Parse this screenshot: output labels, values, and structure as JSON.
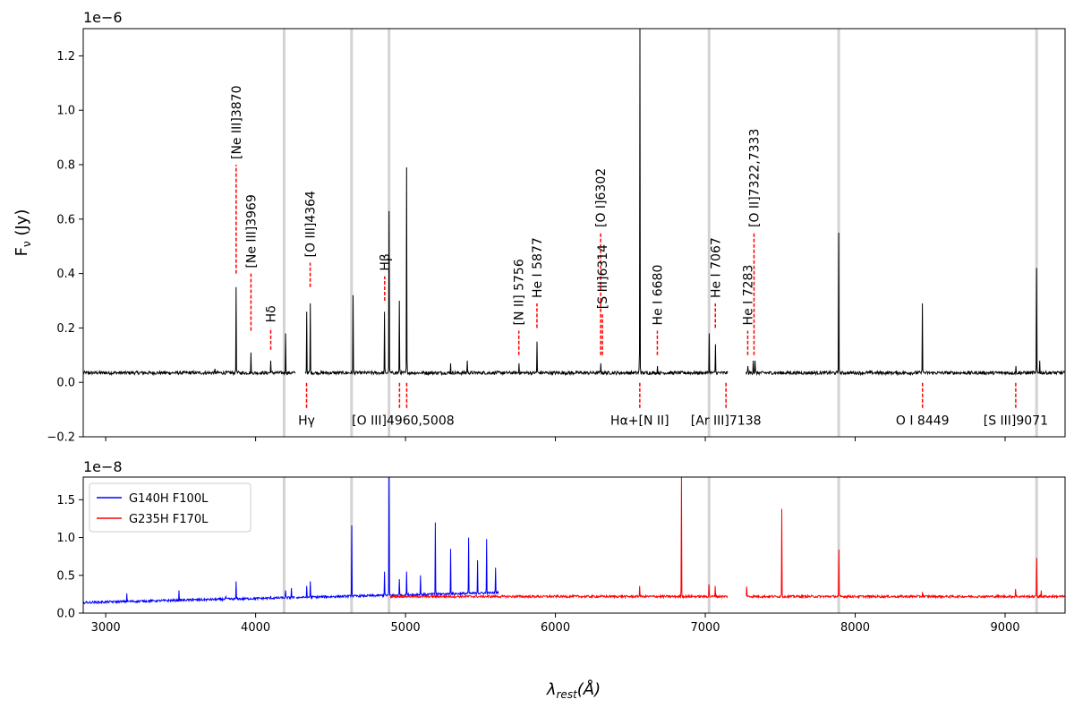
{
  "chart_data": [
    {
      "type": "line",
      "name": "top-panel",
      "ylabel_main": "F",
      "ylabel_sub": "ν",
      "ylabel_unit": " (Jy)",
      "y_offset_label": "1e−6",
      "xlim": [
        2850,
        9400
      ],
      "ylim": [
        -0.2,
        1.3
      ],
      "yticks": [
        -0.2,
        0.0,
        0.2,
        0.4,
        0.6,
        0.8,
        1.0,
        1.2
      ],
      "ytick_labels": [
        "−0.2",
        "0.0",
        "0.2",
        "0.4",
        "0.6",
        "0.8",
        "1.0",
        "1.2"
      ],
      "grey_vlines": [
        4190,
        4640,
        4890,
        7025,
        7890,
        9210
      ],
      "series": [
        {
          "color": "#000000",
          "continuum": 0.035,
          "gaps": [
            [
              4265,
              4330
            ],
            [
              7150,
              7270
            ]
          ],
          "peaks": [
            [
              3730,
              0.05
            ],
            [
              3870,
              0.35
            ],
            [
              3969,
              0.11
            ],
            [
              4101,
              0.08
            ],
            [
              4200,
              0.18
            ],
            [
              4340,
              0.26
            ],
            [
              4364,
              0.29
            ],
            [
              4650,
              0.32
            ],
            [
              4861,
              0.26
            ],
            [
              4890,
              0.63
            ],
            [
              4960,
              0.3
            ],
            [
              5008,
              0.79
            ],
            [
              5300,
              0.07
            ],
            [
              5411,
              0.08
            ],
            [
              5756,
              0.07
            ],
            [
              5877,
              0.15
            ],
            [
              6302,
              0.07
            ],
            [
              6563,
              1.3
            ],
            [
              6680,
              0.06
            ],
            [
              7025,
              0.18
            ],
            [
              7067,
              0.14
            ],
            [
              7283,
              0.06
            ],
            [
              7320,
              0.08
            ],
            [
              7333,
              0.08
            ],
            [
              7890,
              0.55
            ],
            [
              8449,
              0.29
            ],
            [
              9071,
              0.06
            ],
            [
              9210,
              0.42
            ],
            [
              9230,
              0.08
            ]
          ]
        }
      ],
      "annotations_above": [
        {
          "x": 3870,
          "text": "[Ne III]3870",
          "y0": 0.4,
          "y1": 0.8
        },
        {
          "x": 3969,
          "text": "[Ne III]3969",
          "y0": 0.19,
          "y1": 0.4
        },
        {
          "x": 4101,
          "text": "Hδ",
          "y0": 0.12,
          "y1": 0.2
        },
        {
          "x": 4364,
          "text": "[O III]4364",
          "y0": 0.35,
          "y1": 0.44
        },
        {
          "x": 4861,
          "text": "Hβ",
          "y0": 0.3,
          "y1": 0.39
        },
        {
          "x": 5756,
          "text": "[N II] 5756",
          "y0": 0.1,
          "y1": 0.19
        },
        {
          "x": 5877,
          "text": "He I 5877",
          "y0": 0.2,
          "y1": 0.29
        },
        {
          "x": 6302,
          "text": "[O I]6302",
          "y0": 0.1,
          "y1": 0.55
        },
        {
          "x": 6314,
          "text": "[S III]6314",
          "y0": 0.1,
          "y1": 0.25
        },
        {
          "x": 6680,
          "text": "He I 6680",
          "y0": 0.1,
          "y1": 0.19
        },
        {
          "x": 7067,
          "text": "He I 7067",
          "y0": 0.2,
          "y1": 0.29
        },
        {
          "x": 7283,
          "text": "He I 7283",
          "y0": 0.1,
          "y1": 0.19
        },
        {
          "x": 7325,
          "text": "[O II]7322,7333",
          "y0": 0.1,
          "y1": 0.55
        }
      ],
      "annotations_below": [
        {
          "x": 4340,
          "text": "Hγ",
          "dashes": [
            4340
          ]
        },
        {
          "x": 4984,
          "text": "[O III]4960,5008",
          "dashes": [
            4960,
            5008
          ]
        },
        {
          "x": 6563,
          "text": "Hα+[N II]",
          "dashes": [
            6563
          ]
        },
        {
          "x": 7138,
          "text": "[Ar III]7138",
          "dashes": [
            7138
          ]
        },
        {
          "x": 8449,
          "text": "O I 8449",
          "dashes": [
            8449
          ]
        },
        {
          "x": 9071,
          "text": "[S III]9071",
          "dashes": [
            9071
          ]
        }
      ]
    },
    {
      "type": "line",
      "name": "bottom-panel",
      "y_offset_label": "1e−8",
      "xlabel_main": "λ",
      "xlabel_sub": "rest",
      "xlabel_unit": "(Å)",
      "xlim": [
        2850,
        9400
      ],
      "ylim": [
        0.0,
        1.8
      ],
      "xticks": [
        3000,
        4000,
        5000,
        6000,
        7000,
        8000,
        9000
      ],
      "xtick_labels": [
        "3000",
        "4000",
        "5000",
        "6000",
        "7000",
        "8000",
        "9000"
      ],
      "yticks": [
        0.0,
        0.5,
        1.0,
        1.5
      ],
      "ytick_labels": [
        "0.0",
        "0.5",
        "1.0",
        "1.5"
      ],
      "grey_vlines": [
        4190,
        4640,
        4890,
        7025,
        7890,
        9210
      ],
      "legend_position": "upper-left",
      "series": [
        {
          "name": "G140H F100L",
          "color": "#0000ff",
          "x_range": [
            2850,
            5620
          ],
          "continuum_start": 0.14,
          "continuum_end": 0.27,
          "gaps": [
            [
              4262,
              4270
            ]
          ],
          "peaks": [
            [
              3140,
              0.26
            ],
            [
              3490,
              0.3
            ],
            [
              3580,
              0.2
            ],
            [
              3800,
              0.22
            ],
            [
              3870,
              0.42
            ],
            [
              4101,
              0.22
            ],
            [
              4200,
              0.3
            ],
            [
              4240,
              0.33
            ],
            [
              4340,
              0.36
            ],
            [
              4364,
              0.42
            ],
            [
              4640,
              1.16
            ],
            [
              4861,
              0.55
            ],
            [
              4890,
              1.8
            ],
            [
              4960,
              0.45
            ],
            [
              5008,
              0.55
            ],
            [
              5100,
              0.5
            ],
            [
              5200,
              1.2
            ],
            [
              5300,
              0.85
            ],
            [
              5420,
              1.0
            ],
            [
              5480,
              0.7
            ],
            [
              5540,
              0.98
            ],
            [
              5600,
              0.6
            ]
          ]
        },
        {
          "name": "G235H F170L",
          "color": "#ff0000",
          "x_range": [
            4900,
            9400
          ],
          "continuum_start": 0.22,
          "continuum_end": 0.22,
          "gaps": [
            [
              7150,
              7270
            ]
          ],
          "peaks": [
            [
              6563,
              0.36
            ],
            [
              6840,
              1.8
            ],
            [
              7025,
              0.38
            ],
            [
              7067,
              0.36
            ],
            [
              7275,
              0.35
            ],
            [
              7510,
              1.38
            ],
            [
              7890,
              0.84
            ],
            [
              8450,
              0.28
            ],
            [
              9071,
              0.32
            ],
            [
              9210,
              0.73
            ],
            [
              9240,
              0.3
            ]
          ]
        }
      ]
    }
  ]
}
